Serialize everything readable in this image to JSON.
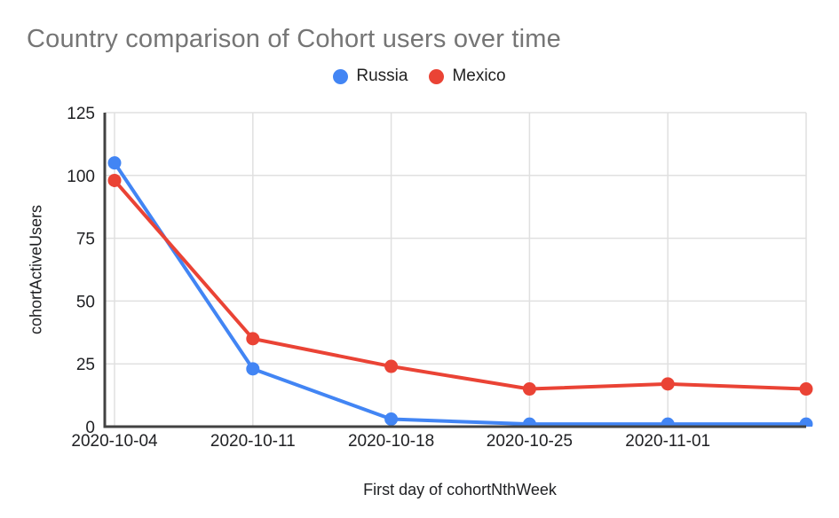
{
  "chart_data": {
    "type": "line",
    "title": "Country comparison of Cohort users over time",
    "xlabel": "First day of cohortNthWeek",
    "ylabel": "cohortActiveUsers",
    "categories": [
      "2020-10-04",
      "2020-10-11",
      "2020-10-18",
      "2020-10-25",
      "2020-11-01",
      ""
    ],
    "series": [
      {
        "name": "Russia",
        "color": "#4285F4",
        "values": [
          105,
          23,
          3,
          1,
          1,
          1
        ]
      },
      {
        "name": "Mexico",
        "color": "#EA4335",
        "values": [
          98,
          35,
          24,
          15,
          17,
          15
        ]
      }
    ],
    "ylim": [
      0,
      125
    ],
    "yticks": [
      0,
      25,
      50,
      75,
      100,
      125
    ],
    "grid": true,
    "legend_position": "top"
  },
  "palette": {
    "title_color": "#757575",
    "label_color": "#202124",
    "legend_text_color": "#212121",
    "gridline_color": "#e0e0e0",
    "axis_color": "#424242",
    "background": "#ffffff"
  }
}
